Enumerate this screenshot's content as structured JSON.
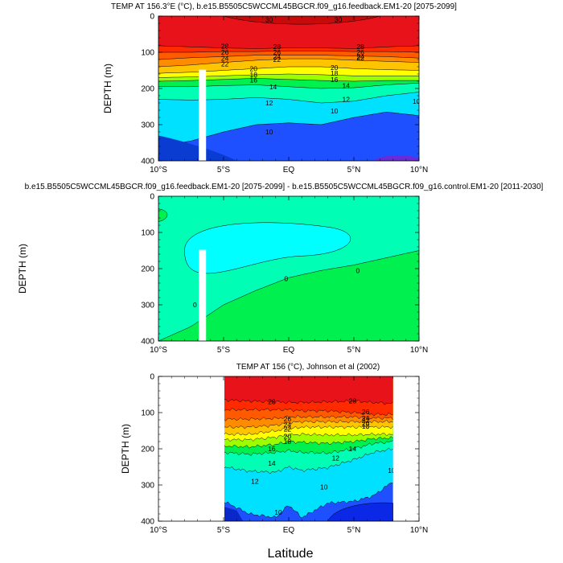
{
  "figure": {
    "xlabel": "Latitude",
    "common_ylabel": "DEPTH (m)"
  },
  "chart_data": [
    {
      "type": "heatmap",
      "title": "TEMP AT 156.3°E (°C), b.e15.B5505C5WCCML45BGCR.f09_g16.feedback.EM1-20 [2075-2099]",
      "ylabel": "DEPTH (m)",
      "xlim": [
        -10,
        10
      ],
      "ylim": [
        400,
        0
      ],
      "x_ticks": [
        "10°S",
        "5°S",
        "EQ",
        "5°N",
        "10°N"
      ],
      "y_ticks": [
        "0",
        "100",
        "200",
        "300",
        "400"
      ],
      "contour_labels": [
        "30",
        "28",
        "26",
        "24",
        "22",
        "20",
        "18",
        "16",
        "14",
        "12",
        "10"
      ],
      "isotherm_depths": {
        "lat": [
          -10,
          -7.5,
          -5,
          -2.5,
          0,
          2.5,
          5,
          7.5,
          10
        ],
        "28": [
          82,
          85,
          88,
          90,
          88,
          88,
          90,
          85,
          82
        ],
        "26": [
          100,
          100,
          98,
          98,
          96,
          96,
          98,
          98,
          100
        ],
        "24": [
          120,
          115,
          112,
          108,
          108,
          108,
          110,
          112,
          116
        ],
        "22": [
          140,
          135,
          128,
          122,
          118,
          118,
          122,
          125,
          128
        ],
        "20": [
          158,
          155,
          150,
          145,
          140,
          140,
          145,
          148,
          150
        ],
        "18": [
          170,
          168,
          165,
          162,
          160,
          162,
          165,
          165,
          165
        ],
        "16": [
          180,
          178,
          175,
          172,
          175,
          178,
          180,
          178,
          178
        ],
        "14": [
          195,
          195,
          192,
          190,
          195,
          200,
          198,
          190,
          185
        ],
        "12": [
          230,
          232,
          230,
          225,
          230,
          240,
          235,
          220,
          210
        ],
        "10": [
          360,
          345,
          320,
          300,
          295,
          300,
          280,
          265,
          275
        ]
      },
      "legend": "none",
      "grid": false
    },
    {
      "type": "heatmap",
      "title": "b.e15.B5505C5WCCML45BGCR.f09_g16.feedback.EM1-20 [2075-2099] - b.e15.B5505C5WCCML45BGCR.f09_g16.control.EM1-20 [2011-2030]",
      "ylabel": "DEPTH (m)",
      "xlim": [
        -10,
        10
      ],
      "ylim": [
        400,
        0
      ],
      "x_ticks": [
        "10°S",
        "5°S",
        "EQ",
        "5°N",
        "10°N"
      ],
      "y_ticks": [
        "0",
        "100",
        "200",
        "300",
        "400"
      ],
      "contour_labels": [
        "0",
        "0",
        "0"
      ],
      "zero_contour_depth": {
        "lat": [
          -10,
          -7.5,
          -5,
          -2.5,
          0,
          2.5,
          5,
          7.5,
          10
        ],
        "depth": [
          400,
          360,
          300,
          260,
          225,
          205,
          190,
          170,
          150
        ]
      },
      "legend": "none",
      "grid": false
    },
    {
      "type": "heatmap",
      "title": "TEMP AT 156 (°C), Johnson et al (2002)",
      "ylabel": "DEPTH (m)",
      "xlim": [
        -10,
        10
      ],
      "ylim": [
        400,
        0
      ],
      "data_lat_range": [
        -5,
        8
      ],
      "x_ticks": [
        "10°S",
        "5°S",
        "EQ",
        "5°N",
        "10°N"
      ],
      "y_ticks": [
        "0",
        "100",
        "200",
        "300",
        "400"
      ],
      "contour_labels": [
        "28",
        "26",
        "24",
        "22",
        "20",
        "18",
        "16",
        "14",
        "12",
        "10",
        "28",
        "26",
        "24",
        "22",
        "18",
        "14",
        "12",
        "10",
        "10",
        "12"
      ],
      "isotherm_depths": {
        "lat": [
          -5,
          -3,
          -1,
          0,
          1,
          3,
          5,
          6.5,
          8
        ],
        "28": [
          65,
          68,
          70,
          72,
          72,
          70,
          68,
          72,
          75
        ],
        "26": [
          92,
          92,
          92,
          92,
          95,
          95,
          100,
          105,
          105
        ],
        "24": [
          118,
          118,
          116,
          112,
          112,
          112,
          112,
          115,
          115
        ],
        "22": [
          140,
          140,
          135,
          128,
          125,
          125,
          125,
          125,
          125
        ],
        "20": [
          160,
          160,
          150,
          145,
          140,
          140,
          140,
          140,
          140
        ],
        "18": [
          175,
          175,
          168,
          162,
          160,
          162,
          162,
          160,
          160
        ],
        "16": [
          192,
          195,
          188,
          180,
          182,
          185,
          180,
          172,
          170
        ],
        "14": [
          210,
          215,
          210,
          205,
          210,
          212,
          200,
          185,
          180
        ],
        "12": [
          250,
          262,
          265,
          250,
          260,
          252,
          230,
          210,
          200
        ],
        "10": [
          345,
          380,
          390,
          355,
          390,
          350,
          345,
          330,
          290
        ]
      },
      "legend": "none",
      "grid": false
    }
  ]
}
